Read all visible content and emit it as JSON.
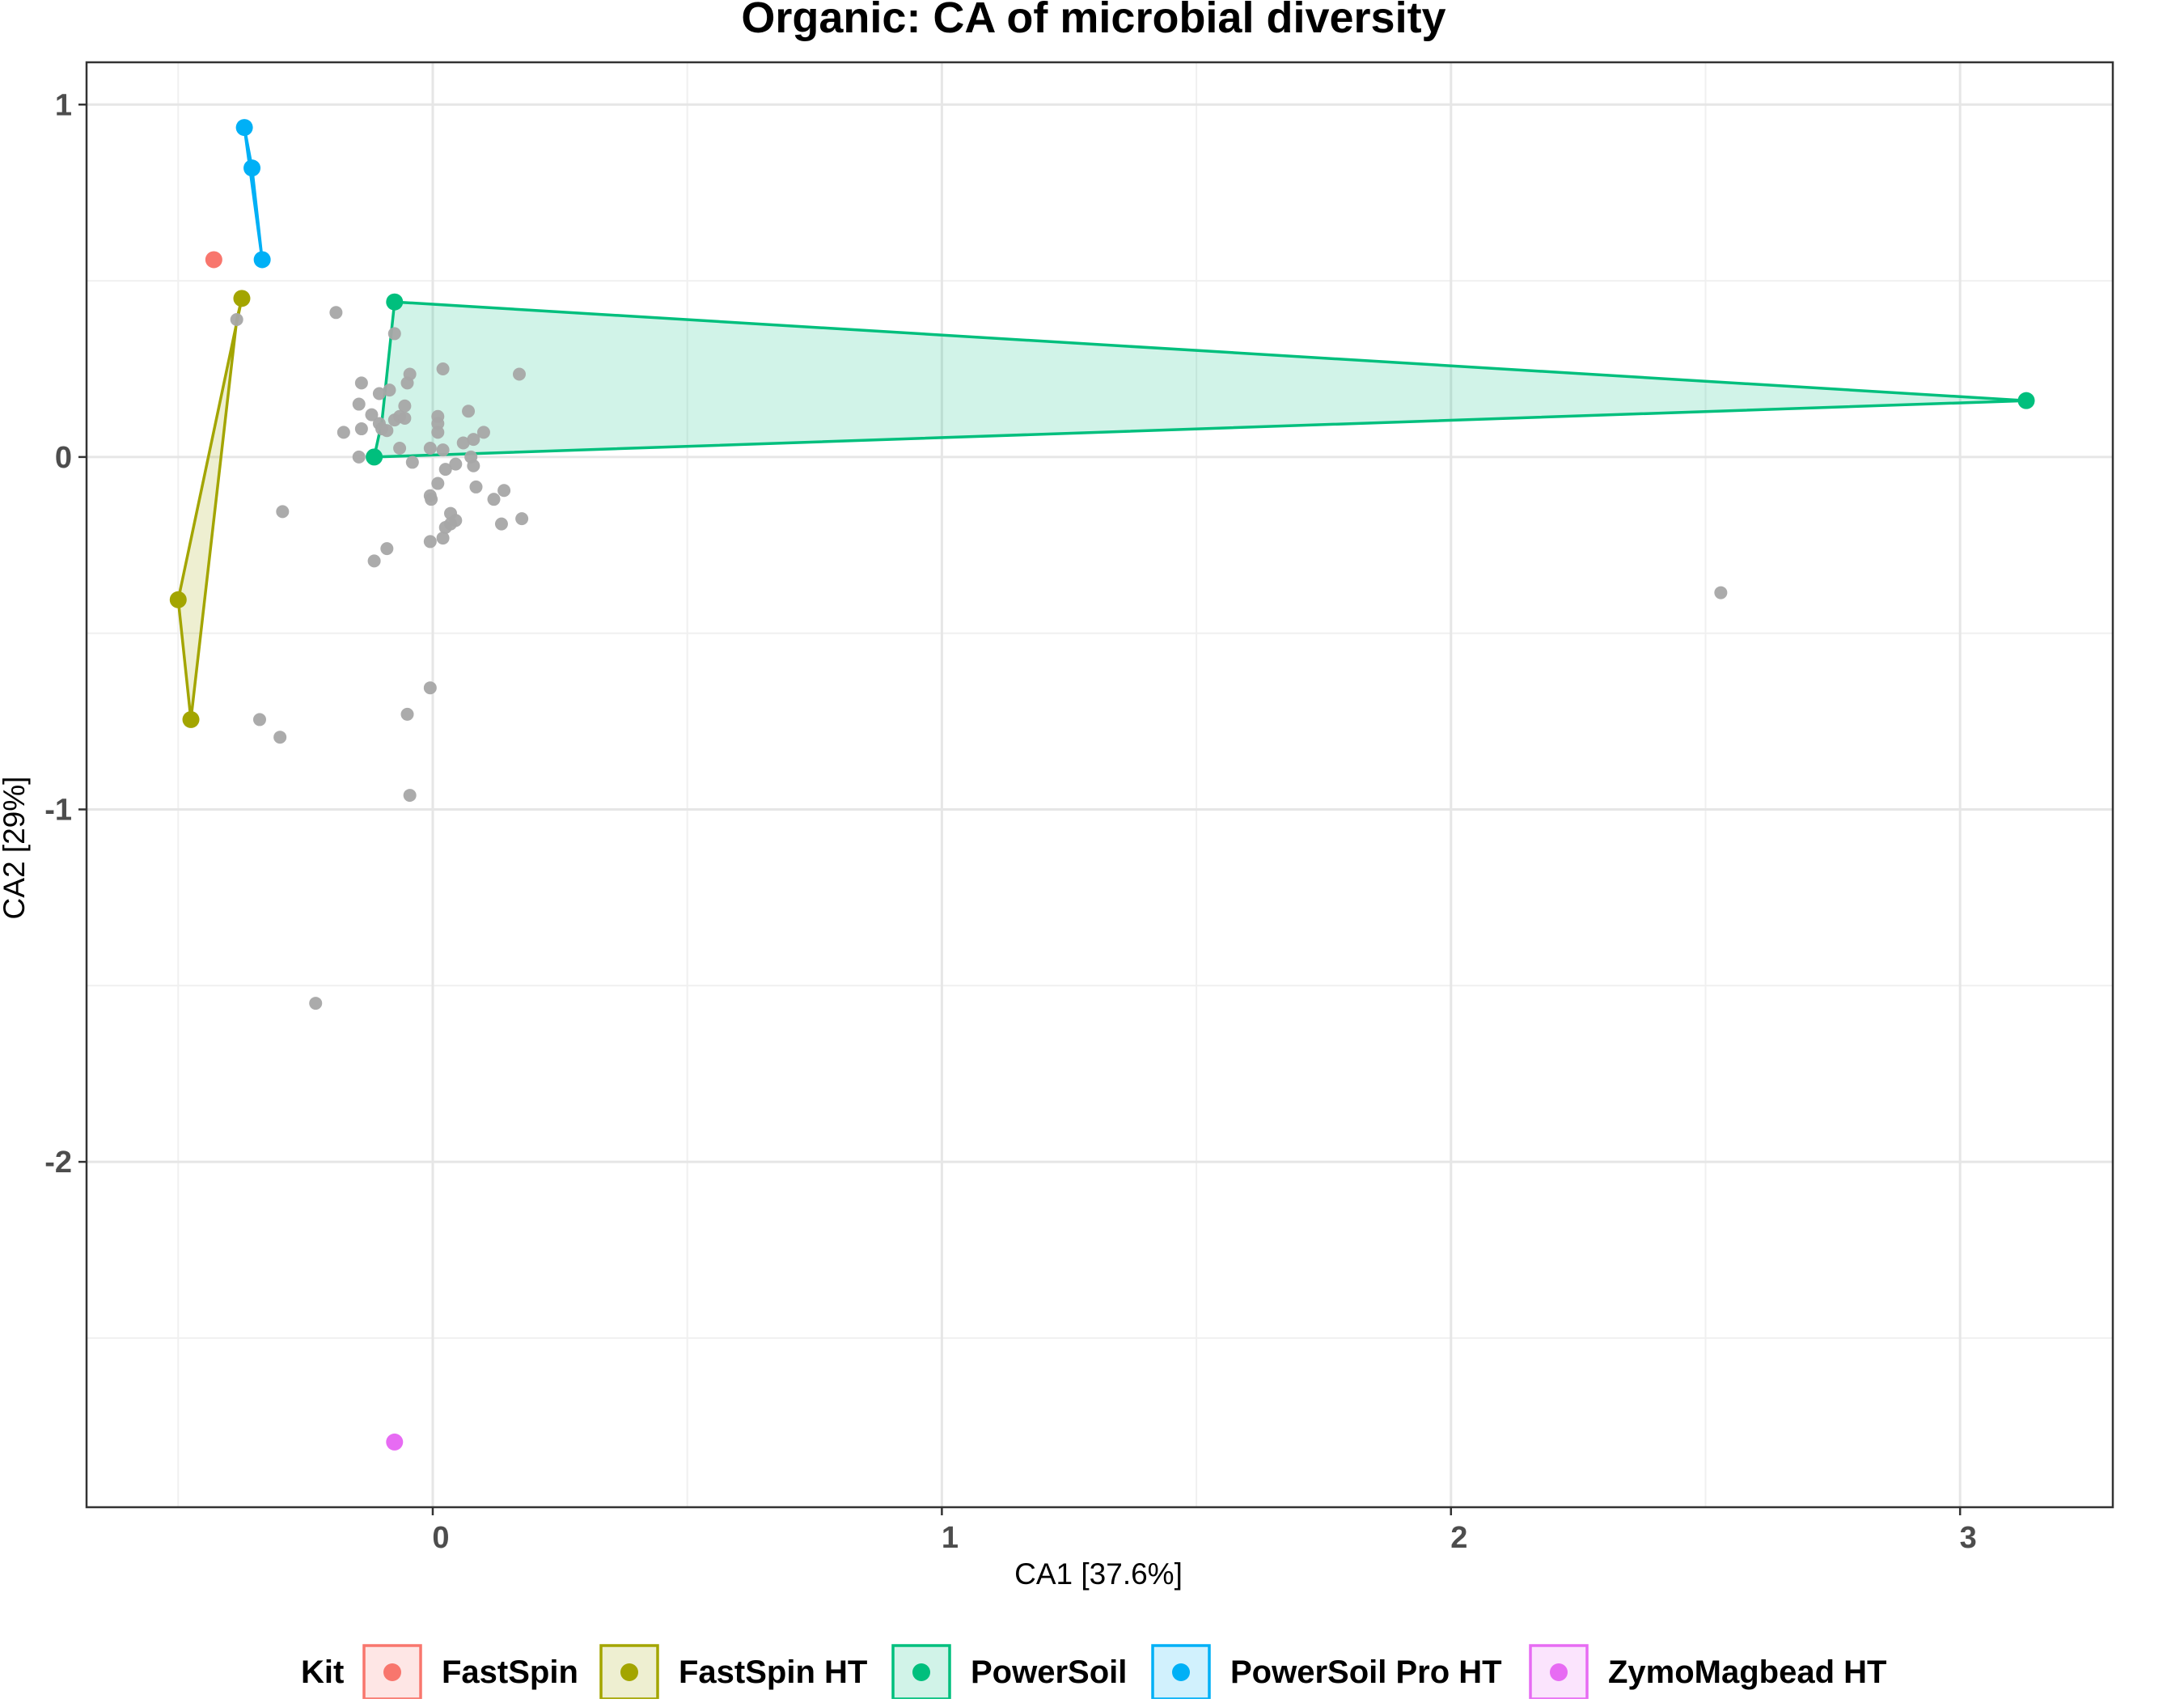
{
  "chart_data": {
    "type": "scatter",
    "title": "Organic: CA of microbial diversity",
    "xlabel": "CA1 [37.6%]",
    "ylabel": "CA2 [29%]",
    "xlim": [
      -0.68,
      3.3
    ],
    "ylim": [
      -2.98,
      1.12
    ],
    "grid": true,
    "legend_position": "bottom",
    "x_ticks": [
      {
        "value": 0,
        "label": "0"
      },
      {
        "value": 1,
        "label": "1"
      },
      {
        "value": 2,
        "label": "2"
      },
      {
        "value": 3,
        "label": "3"
      }
    ],
    "y_ticks": [
      {
        "value": 1,
        "label": "1"
      },
      {
        "value": 0,
        "label": "0"
      },
      {
        "value": -1,
        "label": "-1"
      },
      {
        "value": -2,
        "label": "-2"
      }
    ],
    "x_minor_ticks": [
      -0.5,
      0.5,
      1.5,
      2.5
    ],
    "y_minor_ticks": [
      0.5,
      -0.5,
      -1.5,
      -2.5
    ],
    "legend": {
      "title": "Kit",
      "items": [
        {
          "label": "FastSpin",
          "color": "#F8766D"
        },
        {
          "label": "FastSpin HT",
          "color": "#A3A500"
        },
        {
          "label": "PowerSoil",
          "color": "#00BF7D"
        },
        {
          "label": "PowerSoil Pro HT",
          "color": "#00B0F6"
        },
        {
          "label": "ZymoMagbead HT",
          "color": "#E76BF3"
        }
      ]
    },
    "hulls": [
      {
        "group": "FastSpin HT",
        "color": "#A3A500",
        "points": [
          [
            -0.375,
            0.45
          ],
          [
            -0.5,
            -0.405
          ],
          [
            -0.475,
            -0.745
          ],
          [
            -0.385,
            0.39
          ]
        ]
      },
      {
        "group": "PowerSoil",
        "color": "#00BF7D",
        "points": [
          [
            -0.075,
            0.44
          ],
          [
            3.13,
            0.16
          ],
          [
            -0.115,
            0.0
          ],
          [
            -0.1,
            0.1
          ]
        ]
      },
      {
        "group": "PowerSoil Pro HT",
        "color": "#00B0F6",
        "points": [
          [
            -0.37,
            0.935
          ],
          [
            -0.355,
            0.82
          ],
          [
            -0.335,
            0.56
          ]
        ]
      }
    ],
    "series": [
      {
        "name": "FastSpin",
        "color": "#F8766D",
        "points": [
          [
            -0.43,
            0.56
          ]
        ]
      },
      {
        "name": "FastSpin HT",
        "color": "#A3A500",
        "points": [
          [
            -0.375,
            0.45
          ],
          [
            -0.5,
            -0.405
          ],
          [
            -0.475,
            -0.745
          ]
        ]
      },
      {
        "name": "PowerSoil",
        "color": "#00BF7D",
        "points": [
          [
            -0.075,
            0.44
          ],
          [
            3.13,
            0.16
          ],
          [
            -0.115,
            0.0
          ]
        ]
      },
      {
        "name": "PowerSoil Pro HT",
        "color": "#00B0F6",
        "points": [
          [
            -0.37,
            0.935
          ],
          [
            -0.355,
            0.82
          ],
          [
            -0.335,
            0.56
          ]
        ]
      },
      {
        "name": "ZymoMagbead HT",
        "color": "#E76BF3",
        "points": [
          [
            -0.075,
            -2.795
          ]
        ]
      }
    ],
    "taxa_points": {
      "color": "#A6A6A6",
      "points": [
        [
          -0.385,
          0.39
        ],
        [
          -0.19,
          0.41
        ],
        [
          -0.075,
          0.35
        ],
        [
          -0.045,
          0.235
        ],
        [
          -0.05,
          0.21
        ],
        [
          0.02,
          0.25
        ],
        [
          0.17,
          0.235
        ],
        [
          -0.14,
          0.21
        ],
        [
          -0.085,
          0.19
        ],
        [
          -0.105,
          0.18
        ],
        [
          -0.145,
          0.15
        ],
        [
          -0.055,
          0.145
        ],
        [
          -0.12,
          0.12
        ],
        [
          -0.065,
          0.115
        ],
        [
          -0.075,
          0.105
        ],
        [
          -0.055,
          0.11
        ],
        [
          0.01,
          0.115
        ],
        [
          0.01,
          0.095
        ],
        [
          0.07,
          0.13
        ],
        [
          -0.105,
          0.095
        ],
        [
          -0.14,
          0.08
        ],
        [
          -0.1,
          0.08
        ],
        [
          -0.09,
          0.075
        ],
        [
          -0.175,
          0.07
        ],
        [
          0.1,
          0.07
        ],
        [
          0.08,
          0.05
        ],
        [
          0.06,
          0.04
        ],
        [
          0.01,
          0.07
        ],
        [
          -0.065,
          0.025
        ],
        [
          0.02,
          0.02
        ],
        [
          -0.005,
          0.025
        ],
        [
          0.075,
          0.0
        ],
        [
          -0.145,
          0.0
        ],
        [
          -0.04,
          -0.015
        ],
        [
          0.045,
          -0.02
        ],
        [
          0.025,
          -0.035
        ],
        [
          0.08,
          -0.025
        ],
        [
          0.01,
          -0.075
        ],
        [
          0.085,
          -0.085
        ],
        [
          -0.005,
          -0.11
        ],
        [
          0.14,
          -0.095
        ],
        [
          -0.003,
          -0.12
        ],
        [
          0.12,
          -0.12
        ],
        [
          0.035,
          -0.16
        ],
        [
          0.045,
          -0.18
        ],
        [
          0.175,
          -0.175
        ],
        [
          0.035,
          -0.19
        ],
        [
          0.025,
          -0.2
        ],
        [
          0.135,
          -0.19
        ],
        [
          -0.295,
          -0.155
        ],
        [
          0.02,
          -0.23
        ],
        [
          -0.005,
          -0.24
        ],
        [
          -0.09,
          -0.26
        ],
        [
          -0.115,
          -0.295
        ],
        [
          2.53,
          -0.385
        ],
        [
          -0.005,
          -0.655
        ],
        [
          -0.05,
          -0.73
        ],
        [
          -0.34,
          -0.745
        ],
        [
          -0.3,
          -0.795
        ],
        [
          -0.045,
          -0.96
        ],
        [
          -0.23,
          -1.55
        ]
      ]
    }
  }
}
